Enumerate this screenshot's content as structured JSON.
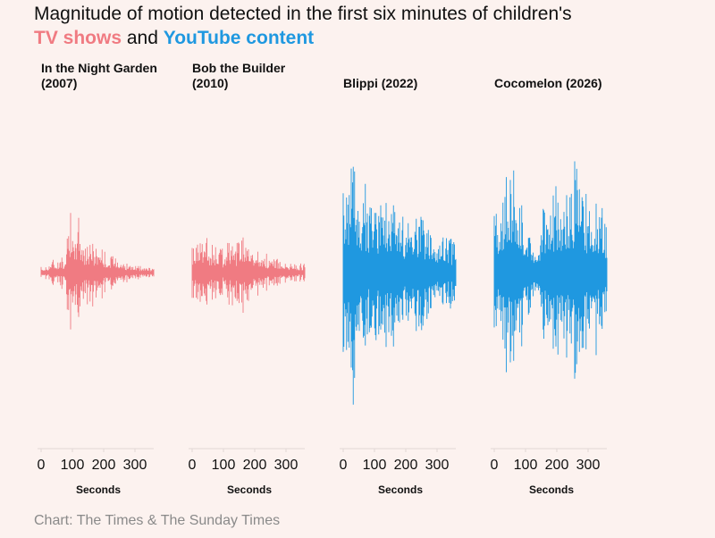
{
  "title": {
    "line1": "Magnitude of motion detected in the first six minutes of children's",
    "tv_label": "TV shows",
    "and": "and",
    "yt_label": "YouTube content"
  },
  "colors": {
    "tv": "#f07b82",
    "youtube": "#1f98e0",
    "background": "#fcf2ef",
    "axis": "#e2d8d5"
  },
  "source": "Chart: The Times & The Sunday Times",
  "chart_data": [
    {
      "type": "area",
      "title_line1": "In the Night Garden",
      "title_line2": "(2007)",
      "category": "TV shows",
      "color": "#f07b82",
      "xlabel": "Seconds",
      "xlim": [
        0,
        360
      ],
      "xticks": [
        "0",
        "100",
        "200",
        "300"
      ],
      "ylim": [
        0,
        1
      ],
      "envelope": [
        {
          "x": 0,
          "y": 0.04
        },
        {
          "x": 20,
          "y": 0.05
        },
        {
          "x": 35,
          "y": 0.1
        },
        {
          "x": 50,
          "y": 0.08
        },
        {
          "x": 60,
          "y": 0.1
        },
        {
          "x": 75,
          "y": 0.12
        },
        {
          "x": 85,
          "y": 0.4
        },
        {
          "x": 90,
          "y": 0.55
        },
        {
          "x": 95,
          "y": 0.4
        },
        {
          "x": 105,
          "y": 0.15
        },
        {
          "x": 120,
          "y": 0.45
        },
        {
          "x": 130,
          "y": 0.3
        },
        {
          "x": 140,
          "y": 0.2
        },
        {
          "x": 150,
          "y": 0.22
        },
        {
          "x": 160,
          "y": 0.3
        },
        {
          "x": 170,
          "y": 0.18
        },
        {
          "x": 190,
          "y": 0.22
        },
        {
          "x": 205,
          "y": 0.14
        },
        {
          "x": 220,
          "y": 0.1
        },
        {
          "x": 240,
          "y": 0.14
        },
        {
          "x": 260,
          "y": 0.09
        },
        {
          "x": 280,
          "y": 0.06
        },
        {
          "x": 300,
          "y": 0.05
        },
        {
          "x": 320,
          "y": 0.04
        },
        {
          "x": 340,
          "y": 0.04
        },
        {
          "x": 360,
          "y": 0.03
        }
      ]
    },
    {
      "type": "area",
      "title_line1": "Bob the Builder",
      "title_line2": "(2010)",
      "category": "TV shows",
      "color": "#f07b82",
      "xlabel": "Seconds",
      "xlim": [
        0,
        360
      ],
      "xticks": [
        "0",
        "100",
        "200",
        "300"
      ],
      "ylim": [
        0,
        1
      ],
      "envelope": [
        {
          "x": 0,
          "y": 0.2
        },
        {
          "x": 20,
          "y": 0.25
        },
        {
          "x": 40,
          "y": 0.3
        },
        {
          "x": 60,
          "y": 0.18
        },
        {
          "x": 80,
          "y": 0.22
        },
        {
          "x": 100,
          "y": 0.15
        },
        {
          "x": 120,
          "y": 0.25
        },
        {
          "x": 140,
          "y": 0.2
        },
        {
          "x": 160,
          "y": 0.35
        },
        {
          "x": 180,
          "y": 0.2
        },
        {
          "x": 200,
          "y": 0.15
        },
        {
          "x": 220,
          "y": 0.18
        },
        {
          "x": 240,
          "y": 0.12
        },
        {
          "x": 260,
          "y": 0.1
        },
        {
          "x": 280,
          "y": 0.1
        },
        {
          "x": 300,
          "y": 0.08
        },
        {
          "x": 320,
          "y": 0.07
        },
        {
          "x": 340,
          "y": 0.06
        },
        {
          "x": 360,
          "y": 0.06
        }
      ]
    },
    {
      "type": "area",
      "title_line1": "Blippi (2022)",
      "title_line2": "",
      "category": "YouTube content",
      "color": "#1f98e0",
      "xlabel": "Seconds",
      "xlim": [
        0,
        360
      ],
      "xticks": [
        "0",
        "100",
        "200",
        "300"
      ],
      "ylim": [
        0,
        1
      ],
      "envelope": [
        {
          "x": 0,
          "y": 0.55
        },
        {
          "x": 20,
          "y": 0.75
        },
        {
          "x": 40,
          "y": 0.85
        },
        {
          "x": 60,
          "y": 0.65
        },
        {
          "x": 80,
          "y": 0.5
        },
        {
          "x": 100,
          "y": 0.45
        },
        {
          "x": 120,
          "y": 0.55
        },
        {
          "x": 140,
          "y": 0.45
        },
        {
          "x": 160,
          "y": 0.5
        },
        {
          "x": 180,
          "y": 0.45
        },
        {
          "x": 200,
          "y": 0.4
        },
        {
          "x": 220,
          "y": 0.38
        },
        {
          "x": 240,
          "y": 0.42
        },
        {
          "x": 260,
          "y": 0.35
        },
        {
          "x": 280,
          "y": 0.3
        },
        {
          "x": 300,
          "y": 0.28
        },
        {
          "x": 320,
          "y": 0.26
        },
        {
          "x": 340,
          "y": 0.24
        },
        {
          "x": 360,
          "y": 0.22
        }
      ]
    },
    {
      "type": "area",
      "title_line1": "Cocomelon (2026)",
      "title_line2": "",
      "category": "YouTube content",
      "color": "#1f98e0",
      "xlabel": "Seconds",
      "xlim": [
        0,
        360
      ],
      "xticks": [
        "0",
        "100",
        "200",
        "300"
      ],
      "ylim": [
        0,
        1
      ],
      "envelope": [
        {
          "x": 0,
          "y": 0.45
        },
        {
          "x": 20,
          "y": 0.55
        },
        {
          "x": 40,
          "y": 0.65
        },
        {
          "x": 60,
          "y": 0.85
        },
        {
          "x": 80,
          "y": 0.55
        },
        {
          "x": 100,
          "y": 0.4
        },
        {
          "x": 120,
          "y": 0.25
        },
        {
          "x": 140,
          "y": 0.3
        },
        {
          "x": 160,
          "y": 0.45
        },
        {
          "x": 180,
          "y": 0.55
        },
        {
          "x": 200,
          "y": 0.6
        },
        {
          "x": 220,
          "y": 0.55
        },
        {
          "x": 240,
          "y": 0.65
        },
        {
          "x": 260,
          "y": 0.7
        },
        {
          "x": 280,
          "y": 0.6
        },
        {
          "x": 300,
          "y": 0.55
        },
        {
          "x": 320,
          "y": 0.6
        },
        {
          "x": 340,
          "y": 0.5
        },
        {
          "x": 360,
          "y": 0.45
        }
      ]
    }
  ]
}
